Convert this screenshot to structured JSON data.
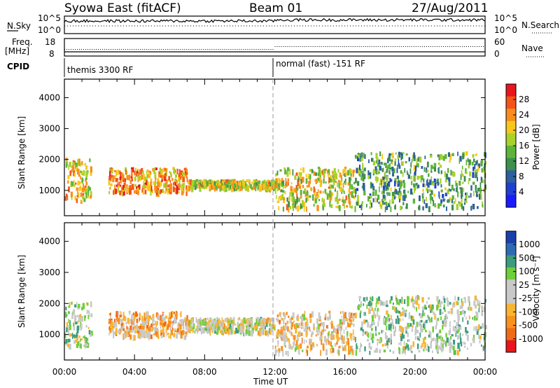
{
  "header": {
    "station": "Syowa East (fitACF)",
    "beam": "Beam 01",
    "date": "27/Aug/2011"
  },
  "top_panels": {
    "nsky_label": "N.Sky",
    "nsearch_label": "N.Search",
    "nsky_ticks": [
      "10^5",
      "10^0"
    ],
    "nsearch_ticks": [
      "10^5",
      "10^0"
    ],
    "freq_label_1": "Freq.",
    "freq_label_2": "[MHz]",
    "freq_ticks": [
      "18",
      "8"
    ],
    "nave_ticks": [
      "60",
      "0"
    ],
    "nave_label": "Nave",
    "cpid_label": "CPID",
    "cpid_segments": [
      {
        "label": "themis 3300 RF",
        "start_h": 0,
        "end_h": 12
      },
      {
        "label": "normal (fast) -151 RF",
        "start_h": 12,
        "end_h": 24
      }
    ]
  },
  "colorbars": {
    "power": {
      "label": "Power [dB]",
      "ticks": [
        "28",
        "24",
        "20",
        "16",
        "12",
        "8",
        "4"
      ],
      "colors": [
        "#e8161c",
        "#f4541a",
        "#f98d1c",
        "#f7c81b",
        "#a8d22a",
        "#5cb53a",
        "#3f8f4f",
        "#2e5f9e",
        "#1f3fd1",
        "#1a1aff"
      ]
    },
    "velocity": {
      "label": "Velocity [m s⁻¹]",
      "ticks": [
        "1000",
        "500",
        "100",
        "25",
        "-25",
        "-100",
        "-500",
        "-1000"
      ],
      "colors": [
        "#1a3fae",
        "#2d6cb3",
        "#3d9b80",
        "#6fcf3a",
        "#c9c9c9",
        "#c9c9c9",
        "#f7b531",
        "#f9911d",
        "#f06a1a",
        "#e8161c"
      ]
    }
  },
  "axes": {
    "ylabel": "Slant Range [km]",
    "xlabel": "Time UT",
    "yticks": [
      "4000",
      "3000",
      "2000",
      "1000"
    ],
    "xticks": [
      "00:00",
      "04:00",
      "08:00",
      "12:00",
      "16:00",
      "20:00",
      "00:00"
    ]
  },
  "chart_data": [
    {
      "type": "heatmap",
      "title": "",
      "quantity": "Power [dB]",
      "xlabel": "Time UT",
      "ylabel": "Slant Range [km]",
      "xlim_hours": [
        0,
        24
      ],
      "ylim_km": [
        180,
        4600
      ],
      "color_range": [
        0,
        30
      ],
      "features": [
        {
          "t": [
            0.0,
            1.5
          ],
          "range_km": [
            600,
            2000
          ],
          "power_db": 20
        },
        {
          "t": [
            2.5,
            7.0
          ],
          "range_km": [
            900,
            1700
          ],
          "power_db": 22
        },
        {
          "t": [
            7.0,
            12.0
          ],
          "range_km": [
            1050,
            1300
          ],
          "power_db": 18
        },
        {
          "t": [
            12.0,
            16.5
          ],
          "range_km": [
            400,
            1700
          ],
          "power_db": 18
        },
        {
          "t": [
            16.5,
            24.0
          ],
          "range_km": [
            400,
            2200
          ],
          "power_db": 12
        }
      ]
    },
    {
      "type": "heatmap",
      "title": "",
      "quantity": "Velocity [m s-1]",
      "xlabel": "Time UT",
      "ylabel": "Slant Range [km]",
      "xlim_hours": [
        0,
        24
      ],
      "ylim_km": [
        180,
        4600
      ],
      "color_range": [
        -1000,
        1000
      ],
      "features": [
        {
          "t": [
            0.0,
            1.5
          ],
          "range_km": [
            600,
            2000
          ],
          "velocity": 100
        },
        {
          "t": [
            2.5,
            7.0
          ],
          "range_km": [
            900,
            1700
          ],
          "velocity": -300
        },
        {
          "t": [
            7.0,
            12.0
          ],
          "range_km": [
            1050,
            1500
          ],
          "velocity": 0
        },
        {
          "t": [
            12.0,
            16.5
          ],
          "range_km": [
            400,
            1700
          ],
          "velocity": -200
        },
        {
          "t": [
            16.5,
            24.0
          ],
          "range_km": [
            400,
            2200
          ],
          "velocity": 150
        }
      ]
    }
  ]
}
